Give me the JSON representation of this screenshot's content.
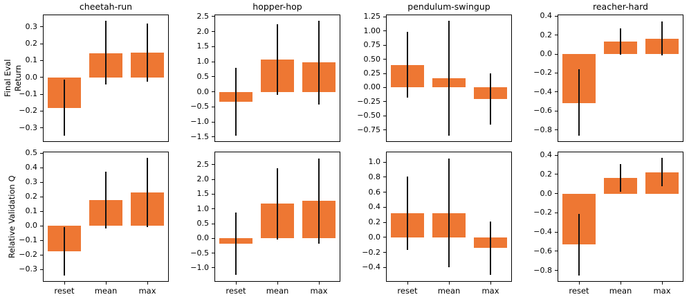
{
  "figure": {
    "background": "#ffffff",
    "row_labels": [
      "Final Eval\nReturn",
      "Relative Validation Q"
    ],
    "x_categories": [
      "reset",
      "mean",
      "max"
    ]
  },
  "colors": {
    "bar": "#ee7733",
    "error_bar": "#111111",
    "spine": "#000000",
    "text": "#000000"
  },
  "chart_data": [
    {
      "type": "bar",
      "panel": "final-eval-cheetah-run",
      "title": "cheetah-run",
      "ylabel": "Final Eval Return",
      "categories": [
        "reset",
        "mean",
        "max"
      ],
      "values": [
        -0.18,
        0.145,
        0.148
      ],
      "error_low": [
        -0.345,
        -0.04,
        -0.025
      ],
      "error_high": [
        -0.012,
        0.335,
        0.32
      ],
      "ylim": [
        -0.379,
        0.369
      ],
      "yticks": [
        0.3,
        0.2,
        0.1,
        0.0,
        -0.1,
        -0.2,
        -0.3
      ],
      "tick_decimals": 1,
      "show_title": true,
      "show_xticklabels": false
    },
    {
      "type": "bar",
      "panel": "final-eval-hopper-hop",
      "title": "hopper-hop",
      "ylabel": "Final Eval Return",
      "categories": [
        "reset",
        "mean",
        "max"
      ],
      "values": [
        -0.33,
        1.08,
        0.97
      ],
      "error_low": [
        -1.45,
        -0.1,
        -0.42
      ],
      "error_high": [
        0.8,
        2.25,
        2.35
      ],
      "ylim": [
        -1.64,
        2.54
      ],
      "yticks": [
        2.5,
        2.0,
        1.5,
        1.0,
        0.5,
        0.0,
        -0.5,
        -1.0,
        -1.5
      ],
      "tick_decimals": 1,
      "show_title": true,
      "show_xticklabels": false
    },
    {
      "type": "bar",
      "panel": "final-eval-pendulum-swingup",
      "title": "pendulum-swingup",
      "ylabel": "Final Eval Return",
      "categories": [
        "reset",
        "mean",
        "max"
      ],
      "values": [
        0.4,
        0.17,
        -0.2
      ],
      "error_low": [
        -0.18,
        -0.85,
        -0.65
      ],
      "error_high": [
        0.98,
        1.18,
        0.25
      ],
      "ylim": [
        -0.95,
        1.28
      ],
      "yticks": [
        1.25,
        1.0,
        0.75,
        0.5,
        0.25,
        0.0,
        -0.25,
        -0.5,
        -0.75
      ],
      "tick_decimals": 2,
      "show_title": true,
      "show_xticklabels": false
    },
    {
      "type": "bar",
      "panel": "final-eval-reacher-hard",
      "title": "reacher-hard",
      "ylabel": "Final Eval Return",
      "categories": [
        "reset",
        "mean",
        "max"
      ],
      "values": [
        -0.52,
        0.13,
        0.165
      ],
      "error_low": [
        -0.86,
        -0.01,
        -0.015
      ],
      "error_high": [
        -0.16,
        0.27,
        0.345
      ],
      "ylim": [
        -0.92,
        0.41
      ],
      "yticks": [
        0.4,
        0.2,
        0.0,
        -0.2,
        -0.4,
        -0.6,
        -0.8
      ],
      "tick_decimals": 1,
      "show_title": true,
      "show_xticklabels": false
    },
    {
      "type": "bar",
      "panel": "validation-q-cheetah-run",
      "title": "cheetah-run",
      "ylabel": "Relative Validation Q",
      "categories": [
        "reset",
        "mean",
        "max"
      ],
      "values": [
        -0.175,
        0.175,
        0.23
      ],
      "error_low": [
        -0.34,
        -0.02,
        -0.01
      ],
      "error_high": [
        -0.01,
        0.37,
        0.465
      ],
      "ylim": [
        -0.38,
        0.505
      ],
      "yticks": [
        0.5,
        0.4,
        0.3,
        0.2,
        0.1,
        0.0,
        -0.1,
        -0.2,
        -0.3
      ],
      "tick_decimals": 1,
      "show_title": false,
      "show_xticklabels": true
    },
    {
      "type": "bar",
      "panel": "validation-q-hopper-hop",
      "title": "hopper-hop",
      "ylabel": "Relative Validation Q",
      "categories": [
        "reset",
        "mean",
        "max"
      ],
      "values": [
        -0.18,
        1.17,
        1.27
      ],
      "error_low": [
        -1.25,
        -0.05,
        -0.17
      ],
      "error_high": [
        0.87,
        2.37,
        2.72
      ],
      "ylim": [
        -1.45,
        2.92
      ],
      "yticks": [
        2.5,
        2.0,
        1.5,
        1.0,
        0.5,
        0.0,
        -0.5,
        -1.0
      ],
      "tick_decimals": 1,
      "show_title": false,
      "show_xticklabels": true
    },
    {
      "type": "bar",
      "panel": "validation-q-pendulum-swingup",
      "title": "pendulum-swingup",
      "ylabel": "Relative Validation Q",
      "categories": [
        "reset",
        "mean",
        "max"
      ],
      "values": [
        0.32,
        0.32,
        -0.14
      ],
      "error_low": [
        -0.17,
        -0.4,
        -0.5
      ],
      "error_high": [
        0.81,
        1.05,
        0.21
      ],
      "ylim": [
        -0.58,
        1.13
      ],
      "yticks": [
        1.0,
        0.8,
        0.6,
        0.4,
        0.2,
        0.0,
        -0.2,
        -0.4
      ],
      "tick_decimals": 1,
      "show_title": false,
      "show_xticklabels": true
    },
    {
      "type": "bar",
      "panel": "validation-q-reacher-hard",
      "title": "reacher-hard",
      "ylabel": "Relative Validation Q",
      "categories": [
        "reset",
        "mean",
        "max"
      ],
      "values": [
        -0.53,
        0.16,
        0.22
      ],
      "error_low": [
        -0.85,
        0.02,
        0.08
      ],
      "error_high": [
        -0.21,
        0.31,
        0.37
      ],
      "ylim": [
        -0.91,
        0.43
      ],
      "yticks": [
        0.4,
        0.2,
        0.0,
        -0.2,
        -0.4,
        -0.6,
        -0.8
      ],
      "tick_decimals": 1,
      "show_title": false,
      "show_xticklabels": true
    }
  ]
}
